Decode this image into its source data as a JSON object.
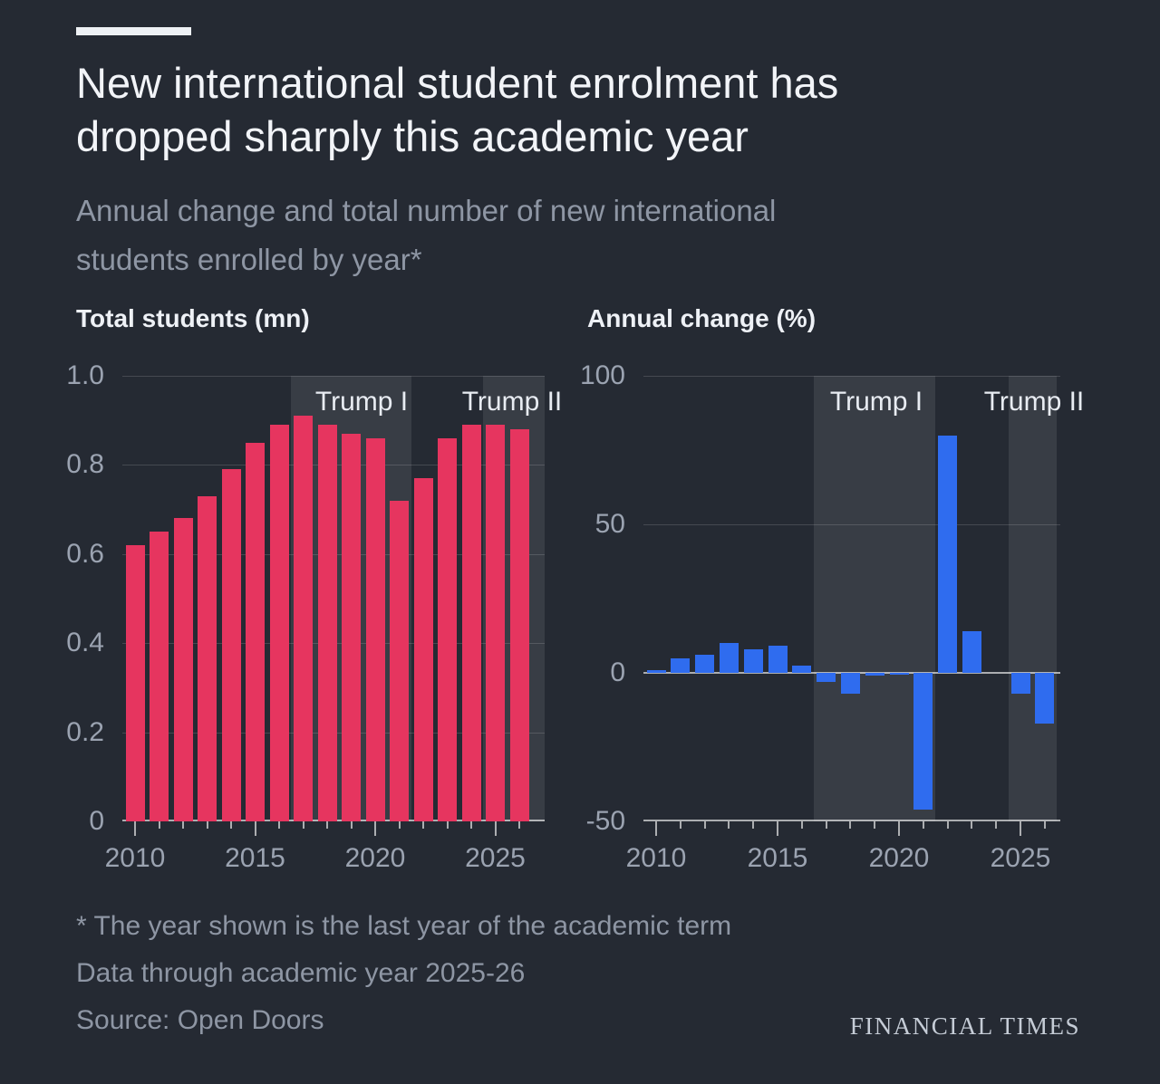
{
  "header": {
    "title": "New international student enrolment has\ndropped sharply this academic year",
    "subtitle": "Annual change and total number of new international\nstudents enrolled by year*"
  },
  "chart_data": [
    {
      "type": "bar",
      "title": "Total students (mn)",
      "ylabel": "Total students (mn)",
      "categories": [
        2010,
        2011,
        2012,
        2013,
        2014,
        2015,
        2016,
        2017,
        2018,
        2019,
        2020,
        2021,
        2022,
        2023,
        2024,
        2025,
        2026
      ],
      "values": [
        0.62,
        0.65,
        0.68,
        0.73,
        0.79,
        0.85,
        0.89,
        0.91,
        0.89,
        0.87,
        0.86,
        0.72,
        0.77,
        0.86,
        0.89,
        0.89,
        0.88
      ],
      "ylim": [
        0,
        1.0
      ],
      "ytick_values": [
        0,
        0.2,
        0.4,
        0.6,
        0.8,
        1.0
      ],
      "yticks": [
        "0",
        "0.2",
        "0.4",
        "0.6",
        "0.8",
        "1.0"
      ],
      "xtick_labels": [
        "2010",
        "2015",
        "2020",
        "2025"
      ],
      "bar_color": "#e6355f",
      "grid": true,
      "legend": "none",
      "annotations": [
        {
          "label": "Trump I",
          "from": 2016.5,
          "to": 2021.5
        },
        {
          "label": "Trump II",
          "from": 2024.5,
          "to": 2026.5
        }
      ]
    },
    {
      "type": "bar",
      "title": "Annual change (%)",
      "ylabel": "Annual change (%)",
      "categories": [
        2010,
        2011,
        2012,
        2013,
        2014,
        2015,
        2016,
        2017,
        2018,
        2019,
        2020,
        2021,
        2022,
        2023,
        2024,
        2025,
        2026
      ],
      "values": [
        1,
        5,
        6,
        10,
        8,
        9,
        2.5,
        -3,
        -7,
        -1,
        -0.5,
        -46,
        80,
        14,
        0,
        -7,
        -17
      ],
      "ylim": [
        -50,
        100
      ],
      "ytick_values": [
        -50,
        0,
        50,
        100
      ],
      "yticks": [
        "-50",
        "0",
        "50",
        "100"
      ],
      "xtick_labels": [
        "2010",
        "2015",
        "2020",
        "2025"
      ],
      "bar_color": "#2f6cef",
      "grid": true,
      "legend": "none",
      "annotations": [
        {
          "label": "Trump I",
          "from": 2016.5,
          "to": 2021.5
        },
        {
          "label": "Trump II",
          "from": 2024.5,
          "to": 2026.5
        }
      ]
    }
  ],
  "footer": {
    "note1": "* The year shown is the last year of the academic term",
    "note2": "Data through academic year 2025-26",
    "source": "Source: Open Doors",
    "brand": "FINANCIAL TIMES"
  },
  "colors": {
    "background": "#252a33",
    "accent_bar": "#eef1f5",
    "title_text": "#f2f4f8",
    "subtitle_text": "#8e96a4",
    "chart_title_text": "#eef1f6",
    "axis_text": "#9ba3b1",
    "band_fill": "rgba(255,255,255,0.09)",
    "band_label_text": "#e8ecf2",
    "gridline": "rgba(255,255,255,0.15)",
    "axis_line": "rgba(255,255,255,0.62)",
    "footnote_text": "#8e96a4",
    "brand_text": "#c5ccd6"
  }
}
